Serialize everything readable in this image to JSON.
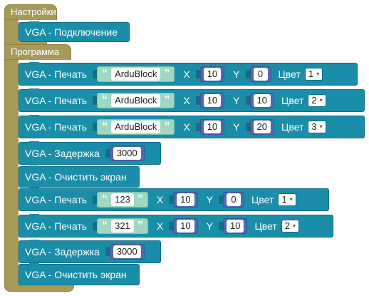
{
  "setup": {
    "title": "Настройки",
    "blocks": [
      {
        "label": "VGA - Подключение"
      }
    ]
  },
  "loop": {
    "title": "Программа",
    "blocks": [
      {
        "label": "VGA - Печать",
        "text": "ArduBlock",
        "x_label": "X",
        "x": "10",
        "y_label": "Y",
        "y": "0",
        "color_label": "Цвет",
        "color": "1"
      },
      {
        "label": "VGA - Печать",
        "text": "ArduBlock",
        "x_label": "X",
        "x": "10",
        "y_label": "Y",
        "y": "10",
        "color_label": "Цвет",
        "color": "2"
      },
      {
        "label": "VGA - Печать",
        "text": "ArduBlock",
        "x_label": "X",
        "x": "10",
        "y_label": "Y",
        "y": "20",
        "color_label": "Цвет",
        "color": "3"
      },
      {
        "label": "VGA - Задержка",
        "value": "3000"
      },
      {
        "label": "VGA - Очистить экран"
      },
      {
        "label": "VGA - Печать",
        "text": "123",
        "x_label": "X",
        "x": "10",
        "y_label": "Y",
        "y": "0",
        "color_label": "Цвет",
        "color": "1"
      },
      {
        "label": "VGA - Печать",
        "text": "321",
        "x_label": "X",
        "x": "10",
        "y_label": "Y",
        "y": "10",
        "color_label": "Цвет",
        "color": "2"
      },
      {
        "label": "VGA - Задержка",
        "value": "3000"
      },
      {
        "label": "VGA - Очистить экран"
      }
    ]
  },
  "dropdown_arrow": "▾",
  "colors": {
    "print_block": "#1a8ea8",
    "container": "#a69a59",
    "string": "#9ed8c2",
    "number": "#4f68b0"
  }
}
